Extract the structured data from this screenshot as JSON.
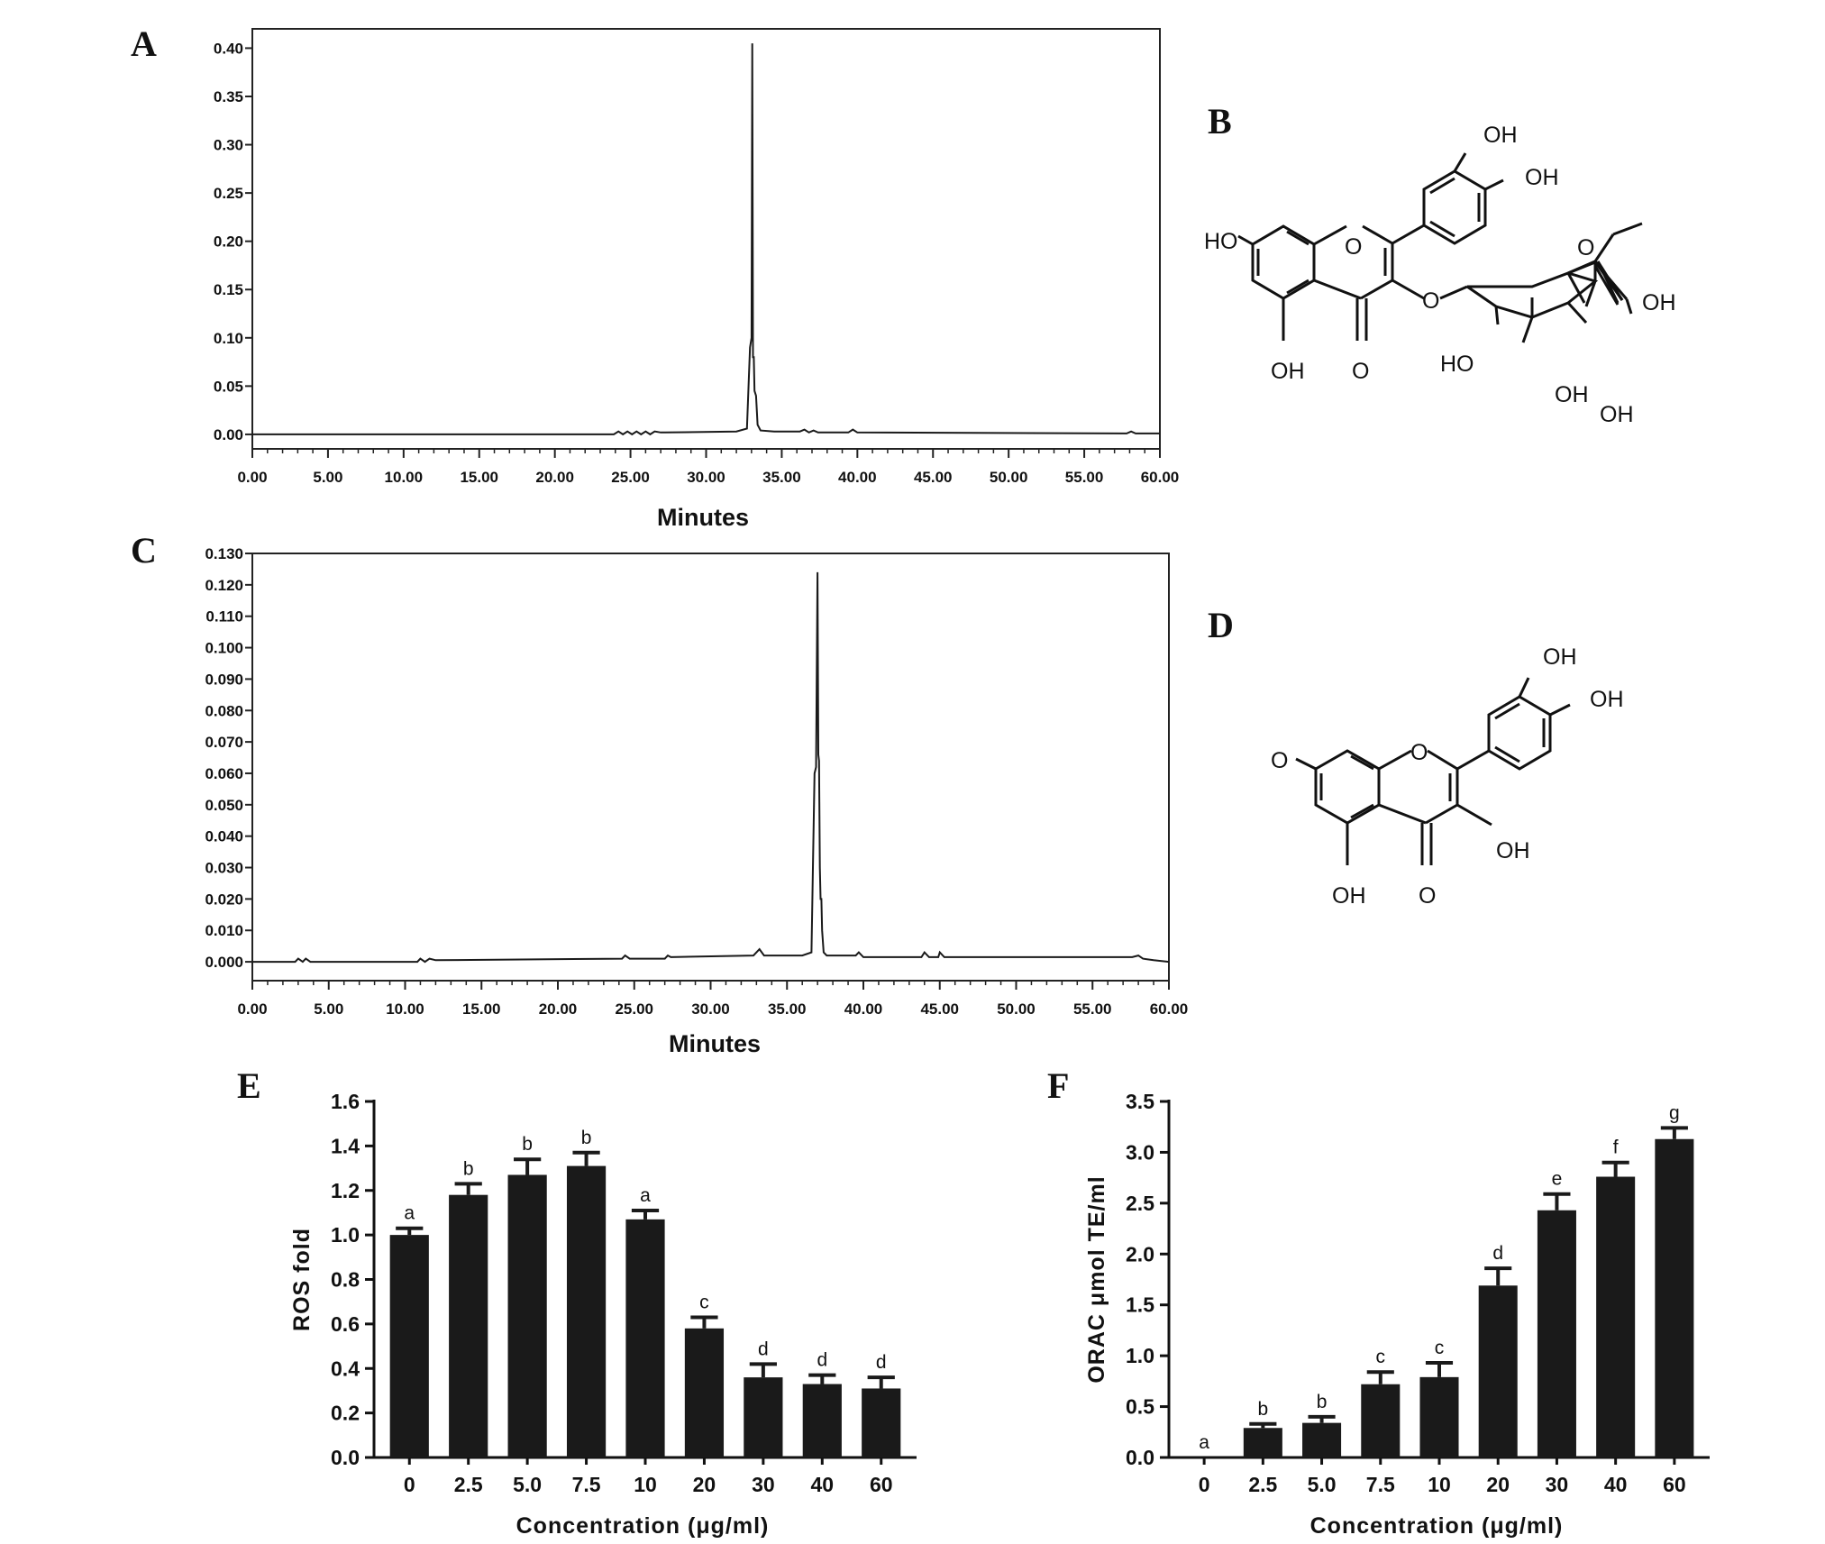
{
  "panels": {
    "A": "A",
    "B": "B",
    "C": "C",
    "D": "D",
    "E": "E",
    "F": "F"
  },
  "structures": {
    "B": {
      "labels": [
        "OH",
        "OH",
        "HO",
        "O",
        "O",
        "O",
        "OH",
        "OH",
        "O",
        "HO",
        "OH",
        "OH"
      ]
    },
    "D": {
      "labels": [
        "OH",
        "OH",
        "O",
        "O",
        "OH",
        "OH",
        "O"
      ]
    }
  },
  "chart_data": [
    {
      "id": "A",
      "type": "line",
      "xlabel": "Minutes",
      "ylabel": "",
      "xlim": [
        0,
        60
      ],
      "ylim": [
        -0.015,
        0.42
      ],
      "xticks": [
        "0.00",
        "5.00",
        "10.00",
        "15.00",
        "20.00",
        "25.00",
        "30.00",
        "35.00",
        "40.00",
        "45.00",
        "50.00",
        "55.00",
        "60.00"
      ],
      "yticks": [
        "0.00",
        "0.05",
        "0.10",
        "0.15",
        "0.20",
        "0.25",
        "0.30",
        "0.35",
        "0.40"
      ],
      "series": [
        {
          "x": [
            0,
            23.9,
            24.2,
            24.5,
            24.8,
            25.1,
            25.4,
            25.7,
            26.0,
            26.3,
            26.6,
            27.0,
            27.3,
            32.0,
            32.7,
            32.9,
            33.0,
            33.05,
            33.1,
            33.15,
            33.2,
            33.3,
            33.4,
            33.6,
            34.5,
            36.2,
            36.5,
            36.8,
            37.1,
            37.4,
            39.4,
            39.7,
            40.0,
            57.8,
            58.1,
            58.4,
            60
          ],
          "y": [
            0,
            0,
            0.003,
            0,
            0.003,
            0,
            0.003,
            0,
            0.003,
            0,
            0.003,
            0.002,
            0.002,
            0.003,
            0.006,
            0.09,
            0.1,
            0.405,
            0.08,
            0.08,
            0.045,
            0.04,
            0.01,
            0.004,
            0.003,
            0.003,
            0.005,
            0.002,
            0.004,
            0.002,
            0.002,
            0.005,
            0.002,
            0.001,
            0.003,
            0.001,
            0.001
          ]
        }
      ]
    },
    {
      "id": "C",
      "type": "line",
      "xlabel": "Minutes",
      "ylabel": "",
      "xlim": [
        0,
        60
      ],
      "ylim": [
        -0.006,
        0.13
      ],
      "xticks": [
        "0.00",
        "5.00",
        "10.00",
        "15.00",
        "20.00",
        "25.00",
        "30.00",
        "35.00",
        "40.00",
        "45.00",
        "50.00",
        "55.00",
        "60.00"
      ],
      "yticks": [
        "0.000",
        "0.010",
        "0.020",
        "0.030",
        "0.040",
        "0.050",
        "0.060",
        "0.070",
        "0.080",
        "0.090",
        "0.100",
        "0.110",
        "0.120",
        "0.130"
      ],
      "series": [
        {
          "x": [
            0,
            2.8,
            3.0,
            3.3,
            3.5,
            3.8,
            4.2,
            10.8,
            11.0,
            11.3,
            11.6,
            12.0,
            24.2,
            24.4,
            24.7,
            27.0,
            27.2,
            27.4,
            32.8,
            33.2,
            33.5,
            36.0,
            36.6,
            36.8,
            36.9,
            37.0,
            37.05,
            37.1,
            37.15,
            37.2,
            37.25,
            37.3,
            37.4,
            37.6,
            39.5,
            39.7,
            40.0,
            43.8,
            44.0,
            44.3,
            44.9,
            45.0,
            45.3,
            57.6,
            58.0,
            58.3,
            59.0,
            60
          ],
          "y": [
            0,
            0,
            0.001,
            0,
            0.001,
            0,
            0,
            0,
            0.001,
            0,
            0.001,
            0.0005,
            0.001,
            0.002,
            0.001,
            0.001,
            0.002,
            0.0015,
            0.002,
            0.004,
            0.002,
            0.002,
            0.003,
            0.06,
            0.062,
            0.124,
            0.066,
            0.064,
            0.03,
            0.02,
            0.02,
            0.01,
            0.003,
            0.002,
            0.002,
            0.003,
            0.0015,
            0.0015,
            0.003,
            0.0015,
            0.0015,
            0.003,
            0.0015,
            0.0015,
            0.002,
            0.001,
            0.0005,
            0
          ]
        }
      ]
    },
    {
      "id": "E",
      "type": "bar",
      "xlabel": "Concentration (μg/ml)",
      "ylabel": "ROS fold",
      "ylim": [
        0,
        1.6
      ],
      "yticks": [
        "0.0",
        "0.2",
        "0.4",
        "0.6",
        "0.8",
        "1.0",
        "1.2",
        "1.4",
        "1.6"
      ],
      "categories": [
        "0",
        "2.5",
        "5.0",
        "7.5",
        "10",
        "20",
        "30",
        "40",
        "60"
      ],
      "values": [
        1.0,
        1.18,
        1.27,
        1.31,
        1.07,
        0.58,
        0.36,
        0.33,
        0.31
      ],
      "errors": [
        0.03,
        0.05,
        0.07,
        0.06,
        0.04,
        0.05,
        0.06,
        0.04,
        0.05
      ],
      "labels": [
        "a",
        "b",
        "b",
        "b",
        "a",
        "c",
        "d",
        "d",
        "d"
      ]
    },
    {
      "id": "F",
      "type": "bar",
      "xlabel": "Concentration (μg/ml)",
      "ylabel": "ORAC μmol TE/ml",
      "ylim": [
        0,
        3.5
      ],
      "yticks": [
        "0.0",
        "0.5",
        "1.0",
        "1.5",
        "2.0",
        "2.5",
        "3.0",
        "3.5"
      ],
      "categories": [
        "0",
        "2.5",
        "5.0",
        "7.5",
        "10",
        "20",
        "30",
        "40",
        "60"
      ],
      "values": [
        0.0,
        0.29,
        0.34,
        0.72,
        0.79,
        1.69,
        2.43,
        2.76,
        3.13
      ],
      "errors": [
        0.0,
        0.04,
        0.06,
        0.12,
        0.14,
        0.17,
        0.16,
        0.14,
        0.11
      ],
      "labels": [
        "a",
        "b",
        "b",
        "c",
        "c",
        "d",
        "e",
        "f",
        "g"
      ]
    }
  ]
}
